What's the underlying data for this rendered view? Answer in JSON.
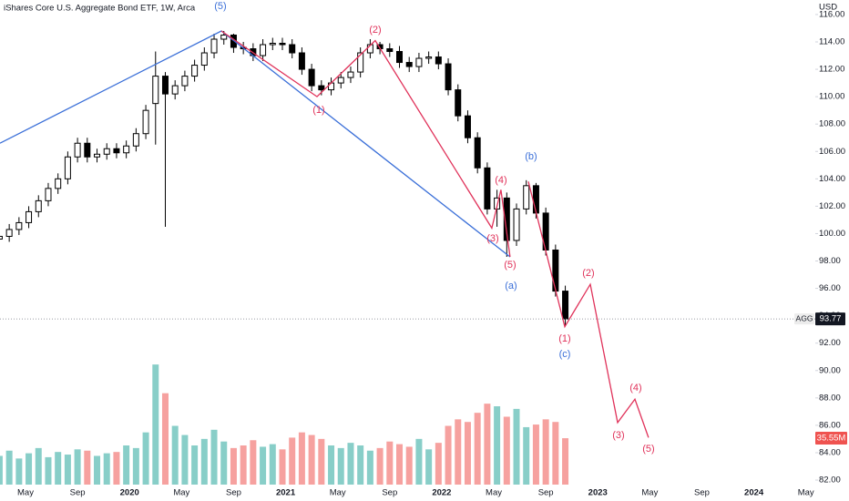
{
  "chart_data": {
    "type": "candlestick",
    "title": "iShares Core U.S. Aggregate Bond ETF, 1W, Arca",
    "y_axis_label": "USD",
    "symbol": "AGG",
    "x": [
      2,
      2.75,
      3.5,
      4.25,
      5,
      5.75,
      6.5,
      7.25,
      8,
      8.75,
      9.5,
      10.25,
      11,
      11.75,
      12.5,
      13.25,
      14,
      14.75,
      15.5,
      16.25,
      17,
      17.75,
      18.5,
      19.25,
      20,
      20.75,
      21.5,
      22.25,
      23,
      23.75,
      24.5,
      25.25,
      26,
      26.75,
      27.5,
      28.25,
      29,
      29.75,
      30.5,
      31.25,
      32,
      32.75,
      33.5,
      34.25,
      35,
      35.75,
      36.5,
      37.25,
      38,
      38.75,
      39.5,
      40.25,
      41,
      41.75,
      42.5,
      43.25,
      44,
      44.75,
      45.5
    ],
    "open": [
      99.6,
      99.8,
      100.3,
      100.8,
      101.6,
      102.4,
      103.3,
      104.0,
      105.6,
      106.6,
      105.6,
      105.8,
      106.2,
      105.9,
      106.4,
      107.3,
      109.5,
      111.5,
      110.2,
      110.8,
      111.5,
      112.3,
      113.2,
      114.2,
      114.5,
      113.6,
      113.5,
      113.0,
      113.8,
      113.9,
      113.8,
      113.2,
      112.0,
      110.8,
      110.5,
      111.0,
      111.4,
      111.8,
      113.2,
      113.8,
      113.5,
      113.3,
      112.5,
      112.2,
      112.8,
      112.9,
      112.4,
      110.5,
      108.6,
      107.0,
      104.8,
      101.8,
      102.6,
      99.5,
      101.8,
      103.5,
      101.5,
      98.8,
      95.8
    ],
    "high": [
      100.2,
      100.7,
      101.2,
      102.0,
      102.8,
      103.7,
      104.4,
      106.0,
      107.0,
      107.0,
      106.2,
      106.6,
      106.6,
      106.8,
      107.7,
      109.4,
      113.3,
      111.8,
      111.2,
      111.9,
      112.7,
      113.6,
      114.6,
      114.8,
      114.6,
      114.0,
      113.9,
      114.2,
      114.3,
      114.3,
      114.2,
      113.6,
      112.4,
      111.2,
      111.4,
      111.8,
      112.2,
      113.6,
      114.2,
      114.0,
      113.9,
      113.7,
      112.9,
      113.2,
      113.3,
      113.3,
      112.8,
      110.9,
      109.0,
      107.4,
      105.2,
      103.2,
      103.0,
      102.2,
      103.9,
      103.7,
      101.9,
      99.2,
      96.2
    ],
    "low": [
      99.2,
      99.4,
      99.9,
      100.4,
      101.2,
      102.0,
      102.9,
      103.6,
      105.2,
      105.2,
      105.2,
      105.4,
      105.5,
      105.5,
      106.0,
      106.9,
      106.5,
      100.5,
      109.8,
      110.4,
      111.1,
      111.9,
      112.8,
      113.8,
      113.2,
      113.1,
      112.6,
      112.6,
      113.4,
      113.4,
      112.8,
      111.6,
      110.4,
      110.1,
      110.1,
      110.6,
      111.0,
      111.4,
      112.8,
      113.1,
      112.9,
      112.1,
      111.8,
      111.8,
      112.4,
      112.0,
      110.1,
      108.2,
      106.6,
      104.4,
      101.4,
      100.5,
      98.3,
      99.1,
      101.4,
      101.1,
      98.4,
      95.4,
      93.3
    ],
    "close": [
      99.8,
      100.3,
      100.8,
      101.6,
      102.4,
      103.3,
      104.0,
      105.6,
      106.6,
      105.6,
      105.8,
      106.2,
      105.9,
      106.4,
      107.3,
      109.0,
      111.5,
      110.2,
      110.8,
      111.5,
      112.3,
      113.2,
      114.2,
      114.5,
      113.6,
      113.5,
      113.0,
      113.8,
      113.9,
      113.8,
      113.2,
      112.0,
      110.8,
      110.5,
      111.0,
      111.4,
      111.8,
      113.2,
      113.8,
      113.5,
      113.3,
      112.5,
      112.2,
      112.8,
      112.9,
      112.4,
      110.5,
      108.6,
      107.0,
      104.8,
      101.8,
      102.6,
      99.5,
      101.8,
      103.5,
      101.5,
      98.8,
      95.8,
      93.77
    ],
    "value_labels": [
      null,
      null,
      null,
      null,
      null,
      null,
      null,
      null,
      null,
      null,
      null,
      null,
      null,
      null,
      null,
      null,
      null,
      null,
      null,
      null,
      null,
      null,
      null,
      null,
      null,
      null,
      null,
      null,
      null,
      null,
      null,
      null,
      null,
      null,
      null,
      null,
      null,
      null,
      null,
      null,
      null,
      null,
      null,
      null,
      null,
      null,
      null,
      null,
      null,
      null,
      null,
      null,
      null,
      null,
      null,
      null,
      null,
      null,
      "93.77"
    ],
    "volume": [
      22,
      26,
      20,
      24,
      28,
      21,
      25,
      23,
      27,
      26,
      22,
      24,
      25,
      30,
      28,
      40,
      92,
      70,
      45,
      38,
      30,
      35,
      42,
      33,
      28,
      30,
      34,
      29,
      31,
      27,
      36,
      40,
      38,
      35,
      30,
      28,
      32,
      30,
      26,
      28,
      33,
      31,
      29,
      35,
      27,
      32,
      45,
      50,
      48,
      55,
      62,
      60,
      52,
      58,
      44,
      46,
      50,
      48,
      35.55
    ],
    "volume_value_labels": [
      null,
      null,
      null,
      null,
      null,
      null,
      null,
      null,
      null,
      null,
      null,
      null,
      null,
      null,
      null,
      null,
      null,
      null,
      null,
      null,
      null,
      null,
      null,
      null,
      null,
      null,
      null,
      null,
      null,
      null,
      null,
      null,
      null,
      null,
      null,
      null,
      null,
      null,
      null,
      null,
      null,
      null,
      null,
      null,
      null,
      null,
      null,
      null,
      null,
      null,
      null,
      null,
      null,
      null,
      null,
      null,
      null,
      null,
      "35.55M"
    ],
    "volume_lim": [
      0,
      127
    ],
    "up_color": "#26a69a",
    "down_color": "#ef5350",
    "xlim": [
      2.04,
      64.72
    ],
    "ylim": [
      81.67,
      117.06
    ],
    "xticks": [
      {
        "value": 4,
        "label": "May"
      },
      {
        "value": 8,
        "label": "Sep"
      },
      {
        "value": 12,
        "label": "2020"
      },
      {
        "value": 16,
        "label": "May"
      },
      {
        "value": 20,
        "label": "Sep"
      },
      {
        "value": 24,
        "label": "2021"
      },
      {
        "value": 28,
        "label": "May"
      },
      {
        "value": 32,
        "label": "Sep"
      },
      {
        "value": 36,
        "label": "2022"
      },
      {
        "value": 40,
        "label": "May"
      },
      {
        "value": 44,
        "label": "Sep"
      },
      {
        "value": 48,
        "label": "2023"
      },
      {
        "value": 52,
        "label": "May"
      },
      {
        "value": 56,
        "label": "Sep"
      },
      {
        "value": 60,
        "label": "2024"
      },
      {
        "value": 64,
        "label": "May"
      }
    ],
    "yticks": [
      {
        "value": 116,
        "label": "116.00"
      },
      {
        "value": 114,
        "label": "114.00"
      },
      {
        "value": 112,
        "label": "112.00"
      },
      {
        "value": 110,
        "label": "110.00"
      },
      {
        "value": 108,
        "label": "108.00"
      },
      {
        "value": 106,
        "label": "106.00"
      },
      {
        "value": 104,
        "label": "104.00"
      },
      {
        "value": 102,
        "label": "102.00"
      },
      {
        "value": 100,
        "label": "100.00"
      },
      {
        "value": 98,
        "label": "98.00"
      },
      {
        "value": 96,
        "label": "96.00"
      },
      {
        "value": 94,
        "label": "94.00"
      },
      {
        "value": 92,
        "label": "92.00"
      },
      {
        "value": 90,
        "label": "90.00"
      },
      {
        "value": 88,
        "label": "88.00"
      },
      {
        "value": 86,
        "label": "86.00"
      },
      {
        "value": 84,
        "label": "84.00"
      },
      {
        "value": 82,
        "label": "82.00"
      }
    ],
    "waves": [
      {
        "color": "#3a6fd8",
        "x": [
          2.04,
          19.06,
          41.25
        ],
        "values": [
          106.6,
          114.8,
          98.3
        ]
      },
      {
        "color": "#e0325a",
        "x": [
          19.06,
          26.41,
          30.89,
          39.85,
          40.55,
          41.25
        ],
        "values": [
          114.8,
          110.0,
          114.1,
          100.4,
          103.2,
          98.3
        ]
      },
      {
        "color": "#e0325a",
        "x": [
          42.66,
          45.46,
          47.42,
          49.52,
          50.85,
          51.9
        ],
        "values": [
          103.8,
          93.2,
          96.3,
          86.2,
          87.9,
          85.1
        ]
      }
    ],
    "wave_labels": [
      {
        "text": "(5)",
        "color": "#3a6fd8"
      },
      {
        "text": "(b)",
        "color": "#3a6fd8"
      },
      {
        "text": "(a)",
        "color": "#3a6fd8"
      },
      {
        "text": "(c)",
        "color": "#3a6fd8"
      },
      {
        "text": "(1)",
        "color": "#e0325a"
      },
      {
        "text": "(2)",
        "color": "#e0325a"
      },
      {
        "text": "(4)",
        "color": "#e0325a"
      },
      {
        "text": "(3)",
        "color": "#e0325a"
      },
      {
        "text": "(5)",
        "color": "#e0325a"
      },
      {
        "text": "(2)",
        "color": "#e0325a"
      },
      {
        "text": "(1)",
        "color": "#e0325a"
      },
      {
        "text": "(4)",
        "color": "#e0325a"
      },
      {
        "text": "(3)",
        "color": "#e0325a"
      },
      {
        "text": "(5)",
        "color": "#e0325a"
      }
    ]
  }
}
